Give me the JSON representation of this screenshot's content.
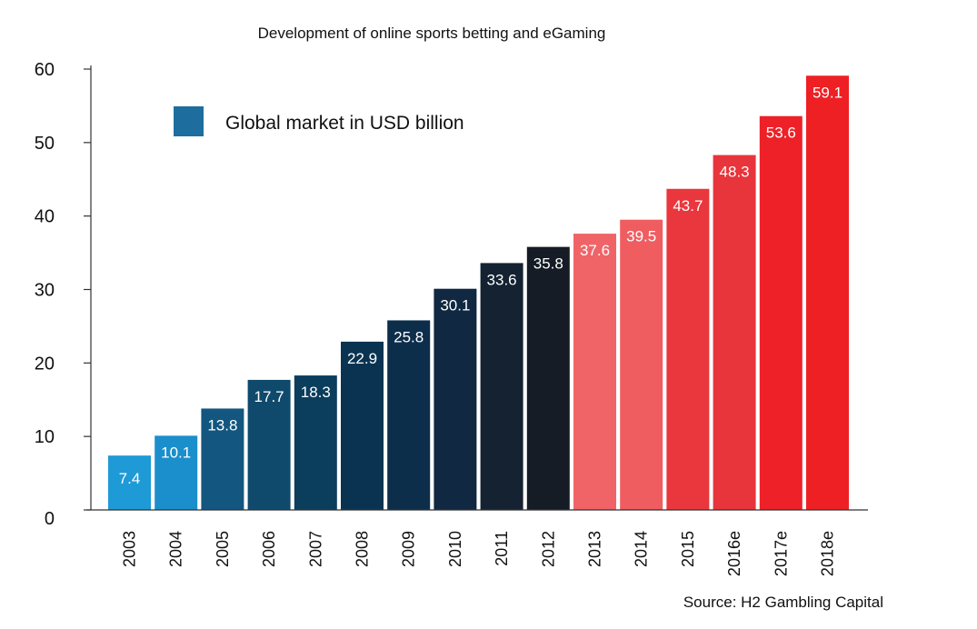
{
  "chart_data": {
    "type": "bar",
    "title": "Development of online sports betting and eGaming",
    "categories": [
      "2003",
      "2004",
      "2005",
      "2006",
      "2007",
      "2008",
      "2009",
      "2010",
      "2011",
      "2012",
      "2013",
      "2014",
      "2015",
      "2016e",
      "2017e",
      "2018e"
    ],
    "series": [
      {
        "name": "Global market in USD billion",
        "values": [
          7.4,
          10.1,
          13.8,
          17.7,
          18.3,
          22.9,
          25.8,
          30.1,
          33.6,
          35.8,
          37.6,
          39.5,
          43.7,
          48.3,
          53.6,
          59.1
        ],
        "value_labels": [
          "7.4",
          "10.1",
          "13.8",
          "17.7",
          "18.3",
          "22.9",
          "25.8",
          "30.1",
          "33.6",
          "35.8",
          "37.6",
          "39.5",
          "43.7",
          "48.3",
          "53.6",
          "59.1"
        ]
      }
    ],
    "bar_colors": [
      "#1e9ad6",
      "#1a8fcc",
      "#13567f",
      "#0f4a6c",
      "#0b3d5c",
      "#0a3352",
      "#0d2e4b",
      "#102841",
      "#142231",
      "#151c26",
      "#f06467",
      "#ef5d61",
      "#e9373d",
      "#e8343b",
      "#ed2127",
      "#ee2024"
    ],
    "legend": {
      "label": "Global market in USD billion",
      "color": "#1d6e9e",
      "position": "top-left"
    },
    "yticks": [
      "0",
      "10",
      "20",
      "30",
      "40",
      "50",
      "60"
    ],
    "ylim": [
      0,
      60
    ],
    "xlabel": "",
    "ylabel": "",
    "grid": false,
    "source": "Source: H2 Gambling Capital"
  }
}
